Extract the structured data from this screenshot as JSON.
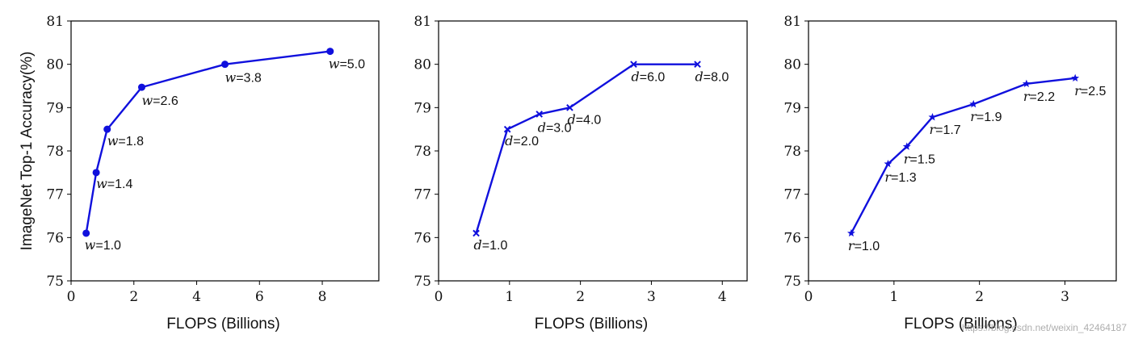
{
  "chart_data": [
    {
      "type": "line",
      "ylabel": "ImageNet Top-1 Accuracy(%)",
      "xlabel": "FLOPS (Billions)",
      "xlim": [
        0,
        9.8
      ],
      "ylim": [
        75,
        81
      ],
      "xticks": [
        "0",
        "2",
        "4",
        "6",
        "8"
      ],
      "yticks": [
        "75",
        "76",
        "77",
        "78",
        "79",
        "80",
        "81"
      ],
      "marker": "circle",
      "color": "#1010dd",
      "points": [
        {
          "x": 0.48,
          "y": 76.1,
          "var": "w",
          "label": "=1.0"
        },
        {
          "x": 0.8,
          "y": 77.5,
          "var": "w",
          "label": "=1.4"
        },
        {
          "x": 1.15,
          "y": 78.5,
          "var": "w",
          "label": "=1.8"
        },
        {
          "x": 2.25,
          "y": 79.47,
          "var": "w",
          "label": "=2.6"
        },
        {
          "x": 4.9,
          "y": 80.0,
          "var": "w",
          "label": "=3.8"
        },
        {
          "x": 8.25,
          "y": 80.3,
          "var": "w",
          "label": "=5.0"
        }
      ]
    },
    {
      "type": "line",
      "ylabel": "",
      "xlabel": "FLOPS (Billions)",
      "xlim": [
        0,
        4.35
      ],
      "ylim": [
        75,
        81
      ],
      "xticks": [
        "0",
        "1",
        "2",
        "3",
        "4"
      ],
      "yticks": [
        "75",
        "76",
        "77",
        "78",
        "79",
        "80",
        "81"
      ],
      "marker": "x",
      "color": "#1010dd",
      "points": [
        {
          "x": 0.53,
          "y": 76.1,
          "var": "d",
          "label": "=1.0"
        },
        {
          "x": 0.97,
          "y": 78.5,
          "var": "d",
          "label": "=2.0"
        },
        {
          "x": 1.42,
          "y": 78.85,
          "var": "d",
          "label": "=3.0"
        },
        {
          "x": 1.85,
          "y": 79.0,
          "var": "d",
          "label": "=4.0"
        },
        {
          "x": 2.75,
          "y": 80.0,
          "var": "d",
          "label": "=6.0"
        },
        {
          "x": 3.65,
          "y": 80.0,
          "var": "d",
          "label": "=8.0"
        }
      ]
    },
    {
      "type": "line",
      "ylabel": "",
      "xlabel": "FLOPS (Billions)",
      "xlim": [
        0,
        3.6
      ],
      "ylim": [
        75,
        81
      ],
      "xticks": [
        "0",
        "1",
        "2",
        "3"
      ],
      "yticks": [
        "75",
        "76",
        "77",
        "78",
        "79",
        "80",
        "81"
      ],
      "marker": "star",
      "color": "#1010dd",
      "points": [
        {
          "x": 0.5,
          "y": 76.1,
          "var": "r",
          "label": "=1.0"
        },
        {
          "x": 0.93,
          "y": 77.7,
          "var": "r",
          "label": "=1.3"
        },
        {
          "x": 1.15,
          "y": 78.1,
          "var": "r",
          "label": "=1.5"
        },
        {
          "x": 1.45,
          "y": 78.78,
          "var": "r",
          "label": "=1.7"
        },
        {
          "x": 1.93,
          "y": 79.08,
          "var": "r",
          "label": "=1.9"
        },
        {
          "x": 2.55,
          "y": 79.55,
          "var": "r",
          "label": "=2.2"
        },
        {
          "x": 3.12,
          "y": 79.68,
          "var": "r",
          "label": "=2.5"
        }
      ]
    }
  ],
  "watermark": "https://blog.csdn.net/weixin_42464187"
}
